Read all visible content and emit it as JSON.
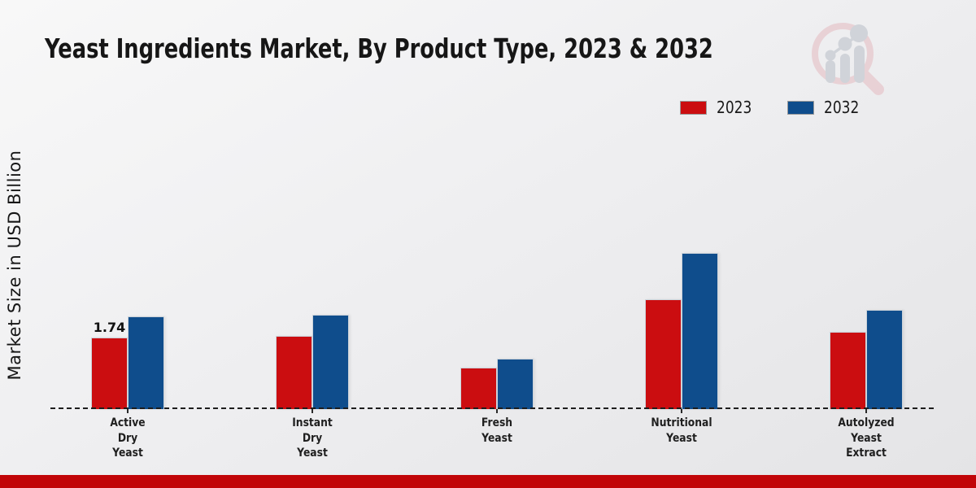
{
  "page": {
    "footer_bar_color": "#c10508"
  },
  "header": {
    "title": "Yeast Ingredients Market, By Product Type, 2023 & 2032"
  },
  "watermark_icon": "magnifier-bar-chart-logo",
  "legend": {
    "position": "top-right",
    "items": [
      {
        "label": "2023",
        "color": "#cb0d10"
      },
      {
        "label": "2032",
        "color": "#0f4d8c"
      }
    ]
  },
  "chart_data": {
    "type": "bar",
    "title": "Yeast Ingredients Market, By Product Type, 2023 & 2032",
    "xlabel": "",
    "ylabel": "Market Size in USD Billion",
    "categories": [
      "Active Dry Yeast",
      "Instant Dry Yeast",
      "Fresh Yeast",
      "Nutritional Yeast",
      "Autolyzed Yeast Extract"
    ],
    "category_label_lines": [
      [
        "Active",
        "Dry",
        "Yeast"
      ],
      [
        "Instant",
        "Dry",
        "Yeast"
      ],
      [
        "Fresh",
        "Yeast"
      ],
      [
        "Nutritional",
        "Yeast"
      ],
      [
        "Autolyzed",
        "Yeast",
        "Extract"
      ]
    ],
    "series": [
      {
        "name": "2023",
        "color": "#cb0d10",
        "values": [
          1.74,
          1.78,
          1.01,
          2.67,
          1.88
        ]
      },
      {
        "name": "2032",
        "color": "#0f4d8c",
        "values": [
          2.25,
          2.29,
          1.23,
          3.8,
          2.41
        ]
      }
    ],
    "data_labels": [
      {
        "series": "2023",
        "category_index": 0,
        "text": "1.74"
      }
    ],
    "ylim": [
      0,
      4.2
    ],
    "grid": false,
    "baseline_style": "dashed",
    "legend_position": "top-right"
  }
}
